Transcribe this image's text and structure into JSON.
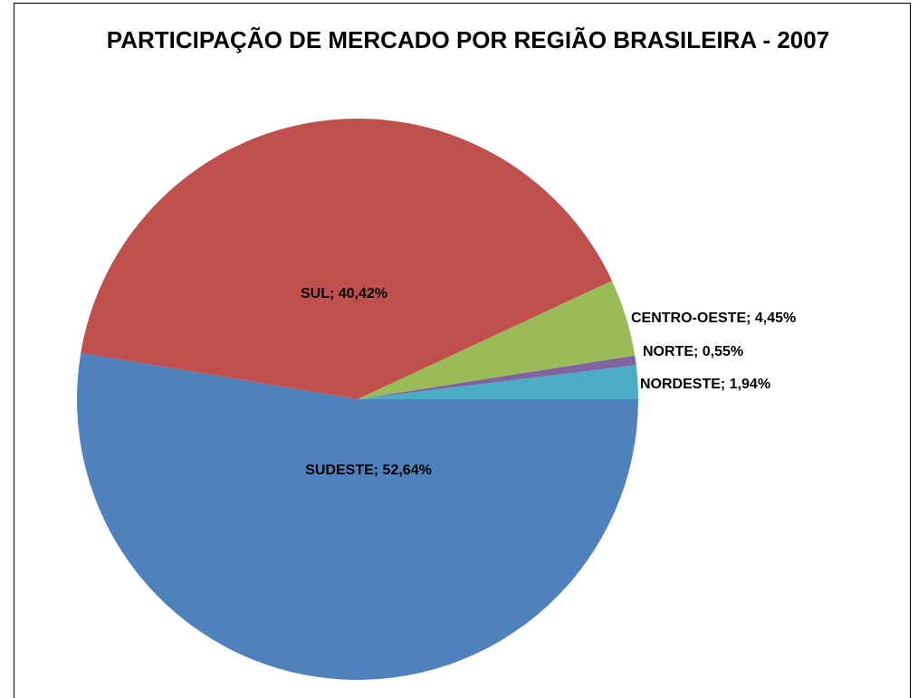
{
  "chart_data": {
    "type": "pie",
    "title": "PARTICIPAÇÃO DE MERCADO POR REGIÃO BRASILEIRA - 2007",
    "categories": [
      "SUDESTE",
      "SUL",
      "CENTRO-OESTE",
      "NORTE",
      "NORDESTE"
    ],
    "values": [
      52.64,
      40.42,
      4.45,
      0.55,
      1.94
    ],
    "value_labels": [
      "52,64%",
      "40,42%",
      "4,45%",
      "0,55%",
      "1,94%"
    ],
    "label_separator": "; ",
    "colors": [
      "#4f81bd",
      "#c0504d",
      "#9bbb59",
      "#8064a2",
      "#4bacc6"
    ]
  }
}
